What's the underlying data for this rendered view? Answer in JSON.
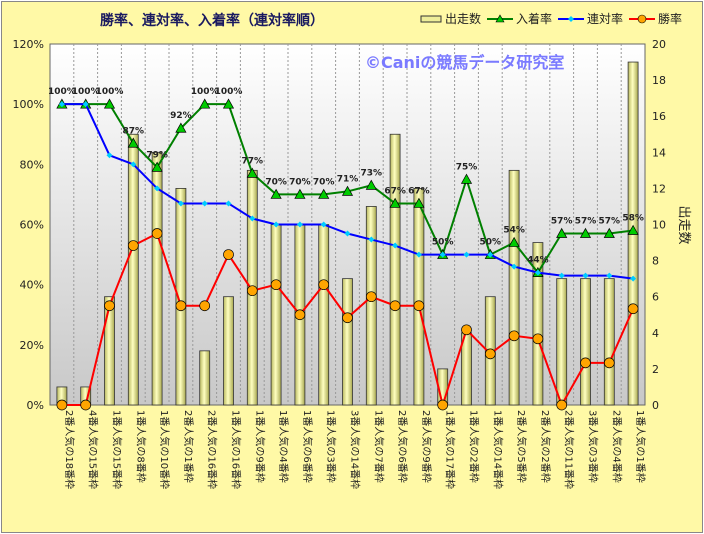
{
  "chart_data": {
    "type": "bar+line",
    "title": "勝率、連対率、入着率（連対率順）",
    "watermark": "©Caniの競馬データ研究室",
    "categories": [
      "2番人気の18番枠",
      "4番人気の15番枠",
      "1番人気の15番枠",
      "1番人気の8番枠",
      "1番人気の10番枠",
      "2番人気の1番枠",
      "2番人気の16番枠",
      "1番人気の16番枠",
      "1番人気の9番枠",
      "1番人気の4番枠",
      "1番人気の6番枠",
      "1番人気の3番枠",
      "3番人気の14番枠",
      "1番人気の7番枠",
      "2番人気の6番枠",
      "2番人気の9番枠",
      "1番人気の17番枠",
      "1番人気の2番枠",
      "1番人気の14番枠",
      "2番人気の5番枠",
      "2番人気の2番枠",
      "2番人気の11番枠",
      "3番人気の3番枠",
      "2番人気の4番枠",
      "1番人気の1番枠"
    ],
    "series": [
      {
        "name": "出走数",
        "type": "bar",
        "axis": "right",
        "color": "#EEEE99",
        "values": [
          1,
          1,
          6,
          15,
          14,
          12,
          3,
          6,
          13,
          10,
          10,
          10,
          7,
          11,
          15,
          12,
          2,
          4,
          6,
          13,
          9,
          7,
          7,
          7,
          19
        ]
      },
      {
        "name": "入着率",
        "type": "line",
        "axis": "left",
        "color": "#008000",
        "values": [
          100,
          100,
          100,
          87,
          79,
          92,
          100,
          100,
          77,
          70,
          70,
          70,
          71,
          73,
          67,
          67,
          50,
          75,
          50,
          54,
          44,
          57,
          57,
          57,
          58
        ]
      },
      {
        "name": "連対率",
        "type": "line",
        "axis": "left",
        "color": "#0000FF",
        "values": [
          100,
          100,
          83,
          80,
          72,
          67,
          67,
          67,
          62,
          60,
          60,
          60,
          57,
          55,
          53,
          50,
          50,
          50,
          50,
          46,
          44,
          43,
          43,
          43,
          42
        ]
      },
      {
        "name": "勝率",
        "type": "line",
        "axis": "left",
        "color": "#FF0000",
        "values": [
          0,
          0,
          33,
          53,
          57,
          33,
          33,
          50,
          38,
          40,
          30,
          40,
          29,
          36,
          33,
          33,
          0,
          25,
          17,
          23,
          22,
          0,
          14,
          14,
          32
        ]
      }
    ],
    "data_labels": [
      "100%",
      "100%",
      "100%",
      "87%",
      "79%",
      "92%",
      "100%",
      "100%",
      "77%",
      "70%",
      "70%",
      "70%",
      "71%",
      "73%",
      "67%",
      "67%",
      "50%",
      "75%",
      "50%",
      "54%",
      "44%",
      "57%",
      "57%",
      "57%",
      "58%"
    ],
    "left_axis": {
      "ticks": [
        "0%",
        "20%",
        "40%",
        "60%",
        "80%",
        "100%",
        "120%"
      ],
      "ylim": [
        0,
        120
      ]
    },
    "right_axis": {
      "label": "出走数",
      "ticks": [
        "0",
        "2",
        "4",
        "6",
        "8",
        "10",
        "12",
        "14",
        "16",
        "18",
        "20"
      ],
      "ylim": [
        0,
        20
      ]
    },
    "legend": [
      "出走数",
      "入着率",
      "連対率",
      "勝率"
    ],
    "legend_position": "top-right"
  }
}
